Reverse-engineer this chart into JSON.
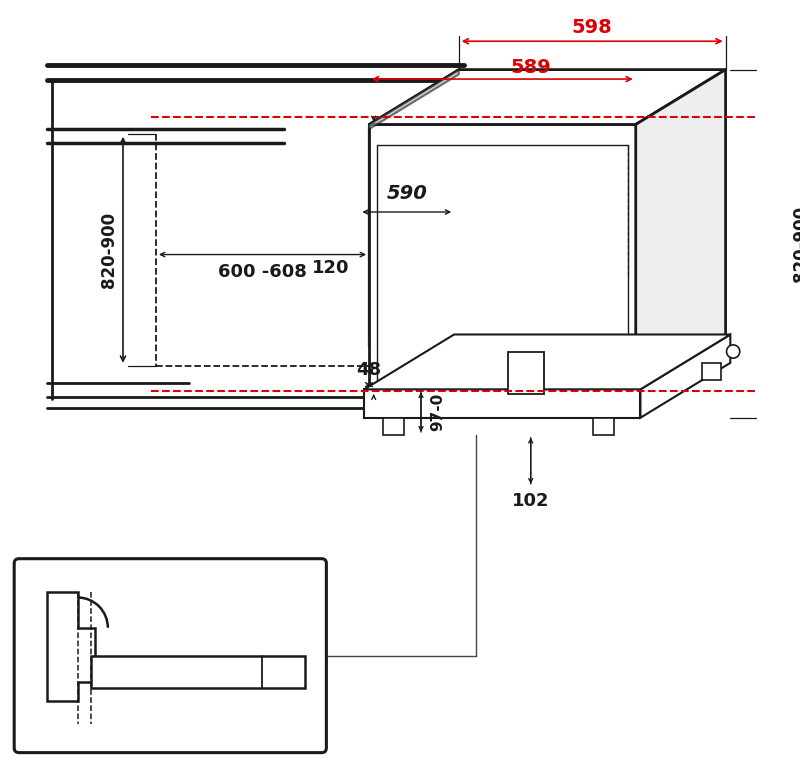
{
  "bg_color": "#ffffff",
  "line_color": "#1a1a1a",
  "red_color": "#dd0000",
  "gray_fill": "#aaaaaa",
  "figsize": [
    8.0,
    7.84
  ],
  "dpi": 100
}
